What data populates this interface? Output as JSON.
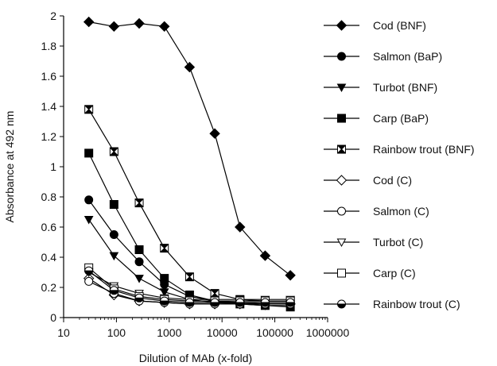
{
  "chart_data": {
    "type": "line",
    "title": "",
    "xlabel": "Dilution of MAb (x-fold)",
    "ylabel": "Absorbance at  492 nm",
    "x_scale": "log",
    "xlim": [
      10,
      1000000
    ],
    "ylim": [
      0,
      2
    ],
    "x_ticks": [
      10,
      100,
      1000,
      10000,
      100000,
      1000000
    ],
    "x_tick_labels": [
      "10",
      "100",
      "1000",
      "10000",
      "100000",
      "1000000"
    ],
    "y_ticks": [
      0,
      0.2,
      0.4,
      0.6,
      0.8,
      1,
      1.2,
      1.4,
      1.6,
      1.8,
      2
    ],
    "y_tick_labels": [
      "0",
      "0.2",
      "0.4",
      "0.6",
      "0.8",
      "1",
      "1.2",
      "1.4",
      "1.6",
      "1.8",
      "2"
    ],
    "grid": false,
    "legend_position": "right",
    "x": [
      30,
      90,
      270,
      810,
      2430,
      7290,
      21870,
      65610,
      196830
    ],
    "series": [
      {
        "name": "Cod (BNF)",
        "marker": "diamond-filled",
        "values": [
          1.96,
          1.93,
          1.95,
          1.93,
          1.66,
          1.22,
          0.6,
          0.41,
          0.28
        ]
      },
      {
        "name": "Salmon (BaP)",
        "marker": "circle-filled",
        "values": [
          0.78,
          0.55,
          0.37,
          0.22,
          0.14,
          0.11,
          0.1,
          0.09,
          0.09
        ]
      },
      {
        "name": "Turbot (BNF)",
        "marker": "triangle-down-filled",
        "values": [
          0.65,
          0.41,
          0.26,
          0.17,
          0.12,
          0.1,
          0.09,
          0.08,
          0.08
        ]
      },
      {
        "name": "Carp (BaP)",
        "marker": "square-filled",
        "values": [
          1.09,
          0.75,
          0.45,
          0.26,
          0.15,
          0.11,
          0.09,
          0.08,
          0.07
        ]
      },
      {
        "name": "Rainbow trout (BNF)",
        "marker": "square-x",
        "values": [
          1.38,
          1.1,
          0.76,
          0.46,
          0.27,
          0.16,
          0.12,
          0.11,
          0.11
        ]
      },
      {
        "name": "Cod (C)",
        "marker": "diamond-open",
        "values": [
          0.26,
          0.15,
          0.11,
          0.1,
          0.09,
          0.09,
          0.09,
          0.09,
          0.09
        ]
      },
      {
        "name": "Salmon (C)",
        "marker": "circle-open",
        "values": [
          0.24,
          0.16,
          0.11,
          0.1,
          0.09,
          0.09,
          0.09,
          0.09,
          0.09
        ]
      },
      {
        "name": "Turbot (C)",
        "marker": "triangle-down-open",
        "values": [
          0.3,
          0.21,
          0.16,
          0.13,
          0.12,
          0.12,
          0.12,
          0.12,
          0.12
        ]
      },
      {
        "name": "Carp (C)",
        "marker": "square-open",
        "values": [
          0.33,
          0.19,
          0.14,
          0.12,
          0.11,
          0.11,
          0.11,
          0.11,
          0.11
        ]
      },
      {
        "name": "Rainbow trout (C)",
        "marker": "circle-half",
        "values": [
          0.31,
          0.18,
          0.13,
          0.11,
          0.1,
          0.1,
          0.1,
          0.1,
          0.1
        ]
      }
    ]
  },
  "colors": {
    "line": "#000000",
    "text": "#111111",
    "background": "#ffffff"
  }
}
